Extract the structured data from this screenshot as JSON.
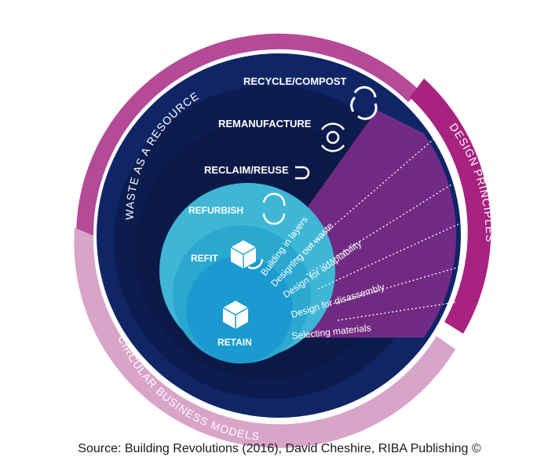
{
  "colors": {
    "outer_ring": "#b44a98",
    "outer_ring_light": "#d8a4c8",
    "design_band": "#a8227f",
    "deep_navy": "#0c1c4e",
    "navy_1": "#152d78",
    "navy_2": "#102463",
    "cyan_outer": "#3fb6d6",
    "cyan_mid": "#2aa8cf",
    "cyan_inner": "#1a9ad0",
    "wedge": "#8b2f8f"
  },
  "ring_labels": {
    "top": "WASTE AS A RESOURCE",
    "right": "DESIGN PRINCIPLES",
    "bottom": "CIRCULAR BUSINESS MODELS"
  },
  "stages": {
    "recycle": {
      "label": "RECYCLE/COMPOST",
      "icon": "recycle-arrows-icon"
    },
    "remanufacture": {
      "label": "REMANUFACTURE",
      "icon": "gear-cycle-icon"
    },
    "reclaim": {
      "label": "RECLAIM/REUSE",
      "icon": "return-arrow-icon"
    },
    "refurbish": {
      "label": "REFURBISH",
      "icon": "refurbish-cycle-icon"
    },
    "refit": {
      "label": "REFIT",
      "icon": "cube-arrow-icon"
    },
    "retain": {
      "label": "RETAIN",
      "icon": "cube-icon"
    }
  },
  "design_principles": [
    "Building in layers",
    "Designing out waste",
    "Design for adaptability",
    "Design for disassembly",
    "Selecting materials"
  ],
  "source": "Source: Building Revolutions (2016), David Cheshire, RIBA Publishing ©"
}
